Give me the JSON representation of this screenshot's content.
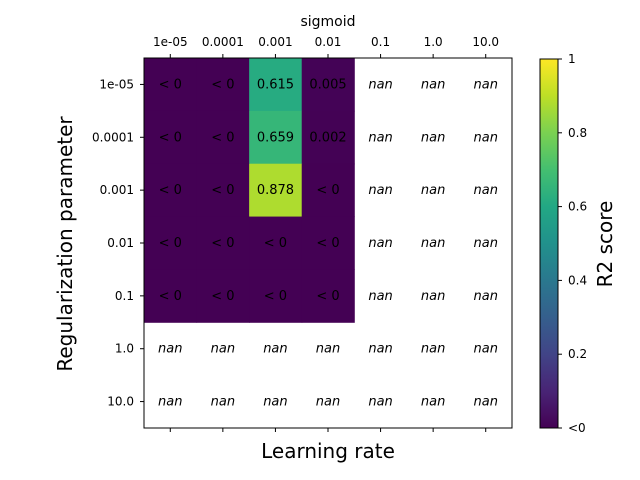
{
  "chart_data": {
    "type": "heatmap",
    "title": "sigmoid",
    "xlabel": "Learning rate",
    "ylabel": "Regularization parameter",
    "x_categories": [
      "1e-05",
      "0.0001",
      "0.001",
      "0.01",
      "0.1",
      "1.0",
      "10.0"
    ],
    "y_categories": [
      "1e-05",
      "0.0001",
      "0.001",
      "0.01",
      "0.1",
      "1.0",
      "10.0"
    ],
    "values": [
      [
        -1,
        -1,
        0.615,
        0.005,
        null,
        null,
        null
      ],
      [
        -1,
        -1,
        0.659,
        0.002,
        null,
        null,
        null
      ],
      [
        -1,
        -1,
        0.878,
        -1,
        null,
        null,
        null
      ],
      [
        -1,
        -1,
        -1,
        -1,
        null,
        null,
        null
      ],
      [
        -1,
        -1,
        -1,
        -1,
        null,
        null,
        null
      ],
      [
        null,
        null,
        null,
        null,
        null,
        null,
        null
      ],
      [
        null,
        null,
        null,
        null,
        null,
        null,
        null
      ]
    ],
    "cell_labels": [
      [
        "< 0",
        "< 0",
        "0.615",
        "0.005",
        "nan",
        "nan",
        "nan"
      ],
      [
        "< 0",
        "< 0",
        "0.659",
        "0.002",
        "nan",
        "nan",
        "nan"
      ],
      [
        "< 0",
        "< 0",
        "0.878",
        "< 0",
        "nan",
        "nan",
        "nan"
      ],
      [
        "< 0",
        "< 0",
        "< 0",
        "< 0",
        "nan",
        "nan",
        "nan"
      ],
      [
        "< 0",
        "< 0",
        "< 0",
        "< 0",
        "nan",
        "nan",
        "nan"
      ],
      [
        "nan",
        "nan",
        "nan",
        "nan",
        "nan",
        "nan",
        "nan"
      ],
      [
        "nan",
        "nan",
        "nan",
        "nan",
        "nan",
        "nan",
        "nan"
      ]
    ],
    "colorbar": {
      "label": "R2 score",
      "range": [
        0,
        1
      ],
      "colormap": "viridis",
      "ticks": [
        0,
        0.2,
        0.4,
        0.6,
        0.8,
        1
      ],
      "tick_labels": [
        "<0",
        "0.2",
        "0.4",
        "0.6",
        "0.8",
        "1"
      ]
    }
  }
}
